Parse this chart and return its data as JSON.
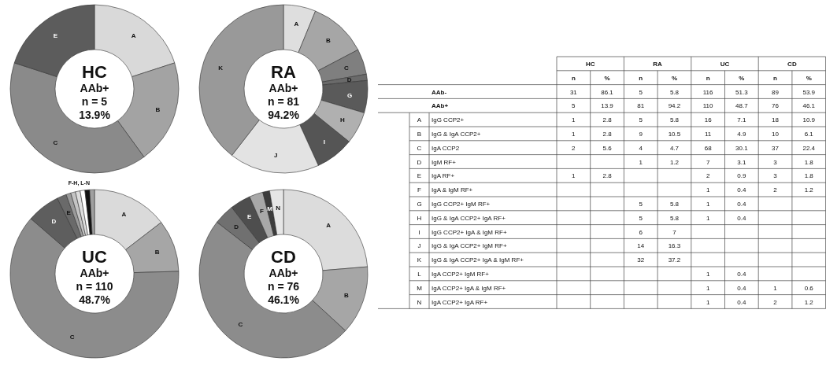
{
  "chart_data": [
    {
      "type": "donut",
      "title": "HC",
      "subtitle": "AAb+",
      "annotations": [
        "n = 5",
        "13.9%"
      ],
      "categories": [
        "A",
        "B",
        "C",
        "E"
      ],
      "values": [
        20,
        20,
        40,
        20
      ],
      "colors": [
        "#d9d9d9",
        "#a3a3a3",
        "#8a8a8a",
        "#5c5c5c"
      ]
    },
    {
      "type": "donut",
      "title": "RA",
      "subtitle": "AAb+",
      "annotations": [
        "n = 81",
        "94.2%"
      ],
      "categories": [
        "A",
        "B",
        "C",
        "D",
        "G",
        "H",
        "I",
        "J",
        "K"
      ],
      "values": [
        6.2,
        11.1,
        4.9,
        1.2,
        6.2,
        6.2,
        7.4,
        17.3,
        39.5
      ],
      "colors": [
        "#dedede",
        "#a6a6a6",
        "#7f7f7f",
        "#6a6a6a",
        "#5a5a5a",
        "#b0b0b0",
        "#555555",
        "#e3e3e3",
        "#999999"
      ]
    },
    {
      "type": "donut",
      "title": "UC",
      "subtitle": "AAb+",
      "annotations": [
        "n = 110",
        "48.7%",
        "F-H, L-N"
      ],
      "categories": [
        "A",
        "B",
        "C",
        "D",
        "E",
        null,
        null,
        null,
        null,
        null,
        null
      ],
      "values": [
        14.55,
        10,
        61.81,
        6.36,
        1.82,
        0.91,
        0.91,
        0.91,
        0.91,
        0.91,
        0.91
      ],
      "colors": [
        "#dadada",
        "#a6a6a6",
        "#8c8c8c",
        "#5e5e5e",
        "#6a6a6a",
        "#9a9a9a",
        "#c4c4c4",
        "#dddddd",
        "#ffffff",
        "#111111",
        "#a0a0a0"
      ]
    },
    {
      "type": "donut",
      "title": "CD",
      "subtitle": "AAb+",
      "annotations": [
        "n = 76",
        "46.1%"
      ],
      "categories": [
        "A",
        "B",
        "C",
        "D",
        "E",
        "F",
        "M",
        "N"
      ],
      "values": [
        23.68,
        13.16,
        48.68,
        3.95,
        3.95,
        2.63,
        1.32,
        2.63
      ],
      "colors": [
        "#dcdcdc",
        "#a6a6a6",
        "#8c8c8c",
        "#707070",
        "#4e4e4e",
        "#a8a8a8",
        "#3c3c3c",
        "#e6e6e6"
      ]
    },
    {
      "type": "heatmap",
      "data_labels": true,
      "grid": true,
      "annotations": [
        "HC",
        "RA",
        "UC",
        "CD"
      ],
      "categories": [
        "n",
        "%",
        "n",
        "%",
        "n",
        "%",
        "n",
        "%"
      ],
      "y2_categories": [
        null,
        null,
        "A",
        "B",
        "C",
        "D",
        "E",
        "F",
        "G",
        "H",
        "I",
        "J",
        "K",
        "L",
        "M",
        "N"
      ],
      "y_categories": [
        "AAb-",
        "AAb+",
        "IgG CCP2+",
        "IgG & IgA CCP2+",
        "IgA CCP2",
        "IgM RF+",
        "IgA RF+",
        "IgA & IgM RF+",
        "IgG CCP2+ IgM RF+",
        "IgG & IgA CCP2+ IgA RF+",
        "IgG CCP2+ IgA & IgM RF+",
        "IgG & IgA CCP2+ IgM RF+",
        "IgG & IgA CCP2+ IgA & IgM RF+",
        "IgA CCP2+ IgM RF+",
        "IgA CCP2+ IgA & IgM RF+",
        "IgA CCP2+ IgA RF+"
      ],
      "cells": [
        [
          31,
          86.1,
          5,
          5.8,
          116,
          51.3,
          89,
          53.9
        ],
        [
          5,
          13.9,
          81,
          94.2,
          110,
          48.7,
          76,
          46.1
        ],
        [
          1,
          2.8,
          5,
          5.8,
          16,
          7.1,
          18,
          10.9
        ],
        [
          1,
          2.8,
          9,
          10.5,
          11,
          4.9,
          10,
          6.1
        ],
        [
          2,
          5.6,
          4,
          4.7,
          68,
          30.1,
          37,
          22.4
        ],
        [
          null,
          null,
          1,
          1.2,
          7,
          3.1,
          3,
          1.8
        ],
        [
          1,
          2.8,
          null,
          null,
          2,
          0.9,
          3,
          1.8
        ],
        [
          null,
          null,
          null,
          null,
          1,
          0.4,
          2,
          1.2
        ],
        [
          null,
          null,
          5,
          5.8,
          1,
          0.4,
          null,
          null
        ],
        [
          null,
          null,
          5,
          5.8,
          1,
          0.4,
          null,
          null
        ],
        [
          null,
          null,
          6,
          7,
          null,
          null,
          null,
          null
        ],
        [
          null,
          null,
          14,
          16.3,
          null,
          null,
          null,
          null
        ],
        [
          null,
          null,
          32,
          37.2,
          null,
          null,
          null,
          null
        ],
        [
          null,
          null,
          null,
          null,
          1,
          0.4,
          null,
          null
        ],
        [
          null,
          null,
          null,
          null,
          1,
          0.4,
          1,
          0.6
        ],
        [
          null,
          null,
          null,
          null,
          1,
          0.4,
          2,
          1.2
        ]
      ]
    }
  ]
}
